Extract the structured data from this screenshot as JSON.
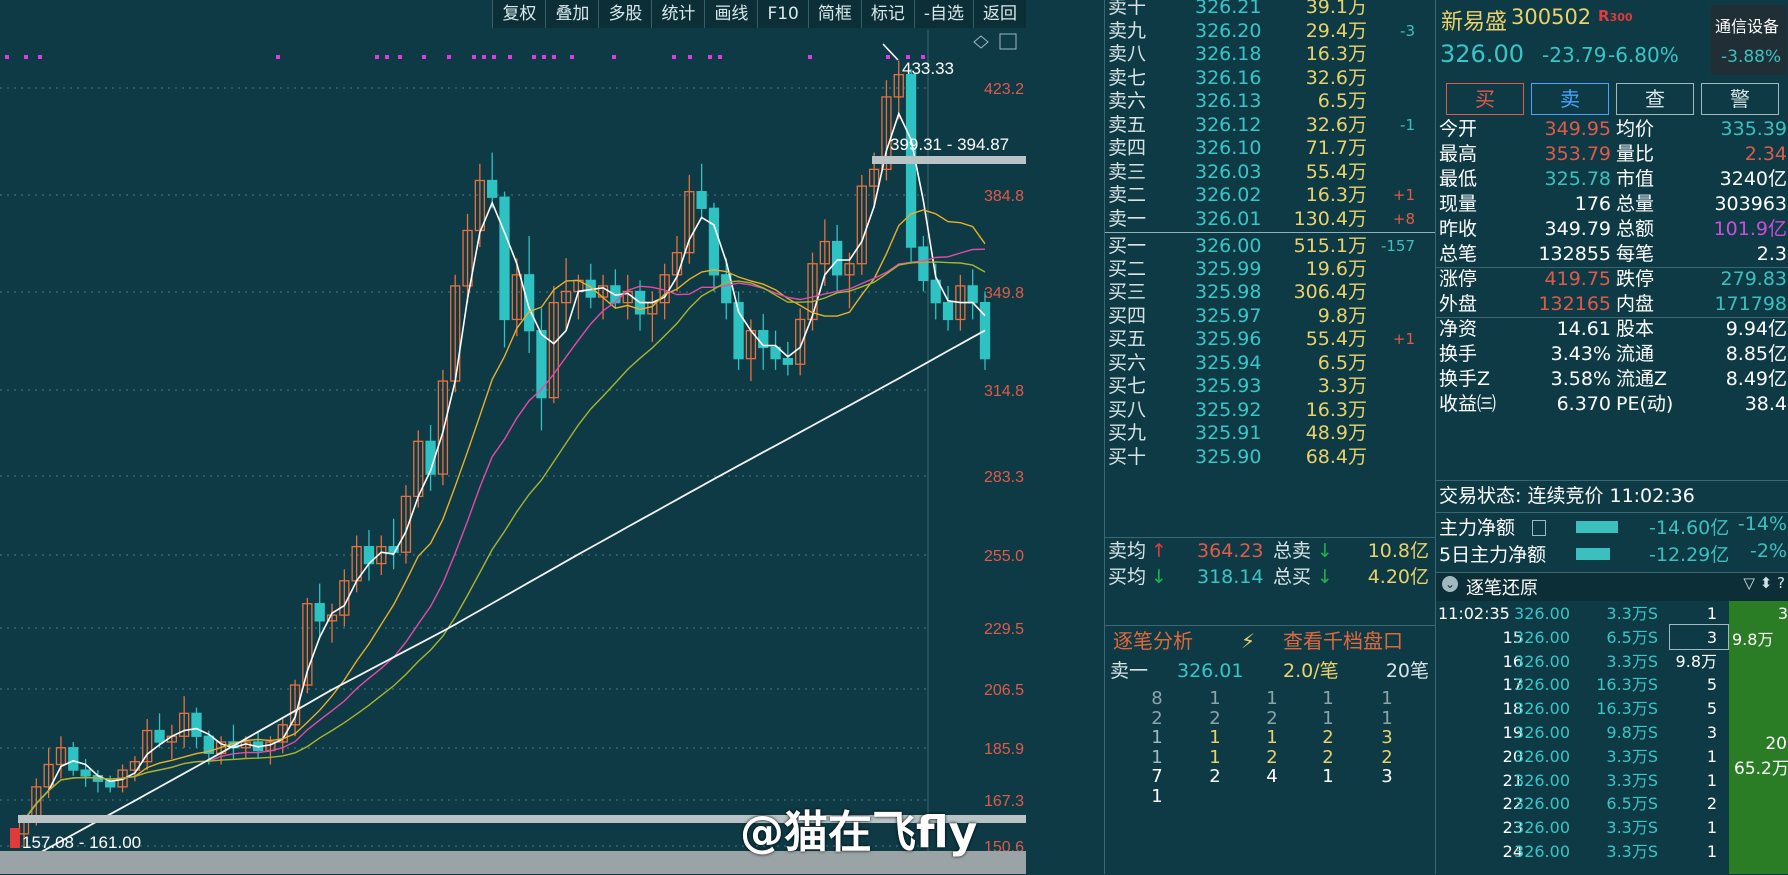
{
  "toolbar": [
    "复权",
    "叠加",
    "多股",
    "统计",
    "画线",
    "F10",
    "简框",
    "标记",
    "-自选",
    "返回"
  ],
  "chart_data": {
    "type": "candlestick",
    "price_ticks": [
      "423.2",
      "384.8",
      "349.8",
      "314.8",
      "283.3",
      "255.0",
      "229.5",
      "206.5",
      "185.9",
      "167.3",
      "150.6"
    ],
    "annotations": {
      "high_label": "433.33",
      "gap_upper": "399.31 - 394.87",
      "gap_lower": "157.08 - 161.00"
    },
    "candles": [
      [
        155,
        162,
        150,
        160
      ],
      [
        160,
        175,
        158,
        172
      ],
      [
        172,
        186,
        168,
        180
      ],
      [
        180,
        190,
        175,
        186
      ],
      [
        186,
        188,
        176,
        178
      ],
      [
        178,
        182,
        172,
        176
      ],
      [
        176,
        178,
        170,
        174
      ],
      [
        174,
        176,
        170,
        172
      ],
      [
        172,
        180,
        170,
        178
      ],
      [
        178,
        183,
        174,
        181
      ],
      [
        181,
        196,
        178,
        192
      ],
      [
        192,
        198,
        186,
        188
      ],
      [
        188,
        194,
        182,
        190
      ],
      [
        190,
        204,
        186,
        198
      ],
      [
        198,
        200,
        186,
        190
      ],
      [
        190,
        192,
        180,
        184
      ],
      [
        184,
        190,
        180,
        188
      ],
      [
        188,
        194,
        182,
        186
      ],
      [
        186,
        190,
        182,
        188
      ],
      [
        188,
        192,
        182,
        185
      ],
      [
        185,
        190,
        180,
        188
      ],
      [
        188,
        196,
        184,
        194
      ],
      [
        194,
        210,
        190,
        208
      ],
      [
        208,
        240,
        205,
        238
      ],
      [
        238,
        245,
        226,
        232
      ],
      [
        232,
        238,
        224,
        234
      ],
      [
        234,
        250,
        230,
        246
      ],
      [
        246,
        262,
        242,
        258
      ],
      [
        258,
        264,
        246,
        252
      ],
      [
        252,
        262,
        248,
        258
      ],
      [
        258,
        268,
        250,
        256
      ],
      [
        256,
        280,
        252,
        276
      ],
      [
        276,
        300,
        272,
        296
      ],
      [
        296,
        302,
        278,
        284
      ],
      [
        284,
        322,
        280,
        318
      ],
      [
        318,
        356,
        314,
        352
      ],
      [
        352,
        378,
        346,
        372
      ],
      [
        372,
        396,
        366,
        390
      ],
      [
        390,
        400,
        380,
        384
      ],
      [
        384,
        386,
        330,
        340
      ],
      [
        340,
        362,
        334,
        356
      ],
      [
        356,
        370,
        328,
        336
      ],
      [
        336,
        344,
        300,
        312
      ],
      [
        312,
        352,
        310,
        346
      ],
      [
        346,
        362,
        336,
        350
      ],
      [
        350,
        356,
        340,
        354
      ],
      [
        354,
        360,
        344,
        348
      ],
      [
        348,
        356,
        340,
        352
      ],
      [
        352,
        358,
        344,
        346
      ],
      [
        346,
        356,
        340,
        350
      ],
      [
        350,
        354,
        336,
        342
      ],
      [
        342,
        350,
        332,
        346
      ],
      [
        346,
        360,
        340,
        356
      ],
      [
        356,
        370,
        350,
        364
      ],
      [
        364,
        392,
        360,
        386
      ],
      [
        386,
        396,
        376,
        380
      ],
      [
        380,
        382,
        350,
        356
      ],
      [
        356,
        362,
        340,
        346
      ],
      [
        346,
        350,
        322,
        326
      ],
      [
        326,
        340,
        318,
        336
      ],
      [
        336,
        342,
        322,
        330
      ],
      [
        330,
        336,
        322,
        326
      ],
      [
        326,
        332,
        320,
        324
      ],
      [
        324,
        344,
        320,
        340
      ],
      [
        340,
        364,
        336,
        360
      ],
      [
        360,
        376,
        352,
        368
      ],
      [
        368,
        374,
        350,
        356
      ],
      [
        356,
        364,
        344,
        360
      ],
      [
        360,
        392,
        356,
        388
      ],
      [
        388,
        400,
        380,
        394
      ],
      [
        394,
        426,
        390,
        420
      ],
      [
        420,
        433,
        412,
        428
      ],
      [
        428,
        430,
        360,
        366
      ],
      [
        366,
        370,
        350,
        354
      ],
      [
        354,
        360,
        340,
        346
      ],
      [
        346,
        352,
        336,
        340
      ],
      [
        340,
        356,
        336,
        352
      ],
      [
        352,
        358,
        340,
        346
      ],
      [
        346,
        350,
        322,
        326
      ]
    ]
  },
  "orderbook": {
    "asks": [
      {
        "label": "卖十",
        "price": "326.21",
        "vol": "39.1万",
        "chg": ""
      },
      {
        "label": "卖九",
        "price": "326.20",
        "vol": "29.4万",
        "chg": "-3"
      },
      {
        "label": "卖八",
        "price": "326.18",
        "vol": "16.3万",
        "chg": ""
      },
      {
        "label": "卖七",
        "price": "326.16",
        "vol": "32.6万",
        "chg": ""
      },
      {
        "label": "卖六",
        "price": "326.13",
        "vol": "6.5万",
        "chg": ""
      },
      {
        "label": "卖五",
        "price": "326.12",
        "vol": "32.6万",
        "chg": "-1"
      },
      {
        "label": "卖四",
        "price": "326.10",
        "vol": "71.7万",
        "chg": ""
      },
      {
        "label": "卖三",
        "price": "326.03",
        "vol": "55.4万",
        "chg": ""
      },
      {
        "label": "卖二",
        "price": "326.02",
        "vol": "16.3万",
        "chg": "+1"
      },
      {
        "label": "卖一",
        "price": "326.01",
        "vol": "130.4万",
        "chg": "+8"
      }
    ],
    "bids": [
      {
        "label": "买一",
        "price": "326.00",
        "vol": "515.1万",
        "chg": "-157"
      },
      {
        "label": "买二",
        "price": "325.99",
        "vol": "19.6万",
        "chg": ""
      },
      {
        "label": "买三",
        "price": "325.98",
        "vol": "306.4万",
        "chg": ""
      },
      {
        "label": "买四",
        "price": "325.97",
        "vol": "9.8万",
        "chg": ""
      },
      {
        "label": "买五",
        "price": "325.96",
        "vol": "55.4万",
        "chg": "+1"
      },
      {
        "label": "买六",
        "price": "325.94",
        "vol": "6.5万",
        "chg": ""
      },
      {
        "label": "买七",
        "price": "325.93",
        "vol": "3.3万",
        "chg": ""
      },
      {
        "label": "买八",
        "price": "325.92",
        "vol": "16.3万",
        "chg": ""
      },
      {
        "label": "买九",
        "price": "325.91",
        "vol": "48.9万",
        "chg": ""
      },
      {
        "label": "买十",
        "price": "325.90",
        "vol": "68.4万",
        "chg": ""
      }
    ],
    "ask_avg_label": "卖均",
    "ask_avg": "364.23",
    "total_sell_label": "总卖",
    "total_sell": "10.8亿",
    "bid_avg_label": "买均",
    "bid_avg": "318.14",
    "total_buy_label": "总买",
    "total_buy": "4.20亿"
  },
  "tick_panel": {
    "analysis": "逐笔分析",
    "qianDang": "查看千档盘口",
    "row_label": "卖一",
    "row_price": "326.01",
    "row_rate": "2.0/笔",
    "row_count": "20笔",
    "grid": [
      [
        "8",
        "1",
        "1",
        "1",
        "1"
      ],
      [
        "2",
        "2",
        "2",
        "1",
        "1"
      ],
      [
        "1",
        "1",
        "1",
        "2",
        "3"
      ],
      [
        "1",
        "1",
        "2",
        "2",
        "2"
      ],
      [
        "7",
        "2",
        "4",
        "1",
        "3"
      ],
      [
        "1",
        "",
        "",
        "",
        ""
      ]
    ]
  },
  "info": {
    "name": "新易盛",
    "code": "300502",
    "badge": "R",
    "badge_sub": "300",
    "sector": "通信设备",
    "sector_chg": "-3.88%",
    "price": "326.00",
    "change": "-23.79",
    "pct": "-6.80%",
    "buttons": [
      "买",
      "卖",
      "查",
      "警"
    ],
    "rows": [
      [
        "今开",
        "349.95",
        "均价",
        "335.39"
      ],
      [
        "最高",
        "353.79",
        "量比",
        "2.34"
      ],
      [
        "最低",
        "325.78",
        "市值",
        "3240亿"
      ],
      [
        "现量",
        "176",
        "总量",
        "303963"
      ],
      [
        "昨收",
        "349.79",
        "总额",
        "101.9亿"
      ],
      [
        "总笔",
        "132855",
        "每笔",
        "2.3"
      ],
      [
        "涨停",
        "419.75",
        "跌停",
        "279.83"
      ],
      [
        "外盘",
        "132165",
        "内盘",
        "171798"
      ],
      [
        "净资",
        "14.61",
        "股本",
        "9.94亿"
      ],
      [
        "换手",
        "3.43%",
        "流通",
        "8.85亿"
      ],
      [
        "换手Z",
        "3.58%",
        "流通Z",
        "8.49亿"
      ],
      [
        "收益㈢",
        "6.370",
        "PE(动)",
        "38.4"
      ]
    ],
    "status": "交易状态: 连续竞价 11:02:36",
    "main_flow_label": "主力净额",
    "main_flow": "-14.60亿",
    "main_flow_pct": "-14%",
    "flow5_label": "5日主力净额",
    "flow5": "-12.29亿",
    "flow5_pct": "-2%",
    "restore_label": "逐笔还原",
    "trades": [
      [
        "11:02:35",
        "326.00",
        "3.3万S",
        "1",
        "3"
      ],
      [
        "15",
        "326.00",
        "6.5万S",
        "3",
        ""
      ],
      [
        "16",
        "326.00",
        "3.3万S",
        "9.8万",
        ""
      ],
      [
        "17",
        "326.00",
        "16.3万S",
        "5",
        ""
      ],
      [
        "18",
        "326.00",
        "16.3万S",
        "5",
        ""
      ],
      [
        "19",
        "326.00",
        "9.8万S",
        "3",
        ""
      ],
      [
        "20",
        "326.00",
        "3.3万S",
        "1",
        ""
      ],
      [
        "21",
        "326.00",
        "3.3万S",
        "1",
        ""
      ],
      [
        "22",
        "326.00",
        "6.5万S",
        "2",
        ""
      ],
      [
        "23",
        "326.00",
        "3.3万S",
        "1",
        ""
      ],
      [
        "24",
        "326.00",
        "3.3万S",
        "1",
        ""
      ]
    ],
    "side_vol_1": "9.8万",
    "side_big_num": "20",
    "side_big_vol": "65.2万"
  },
  "watermark": "@猫在飞fly"
}
